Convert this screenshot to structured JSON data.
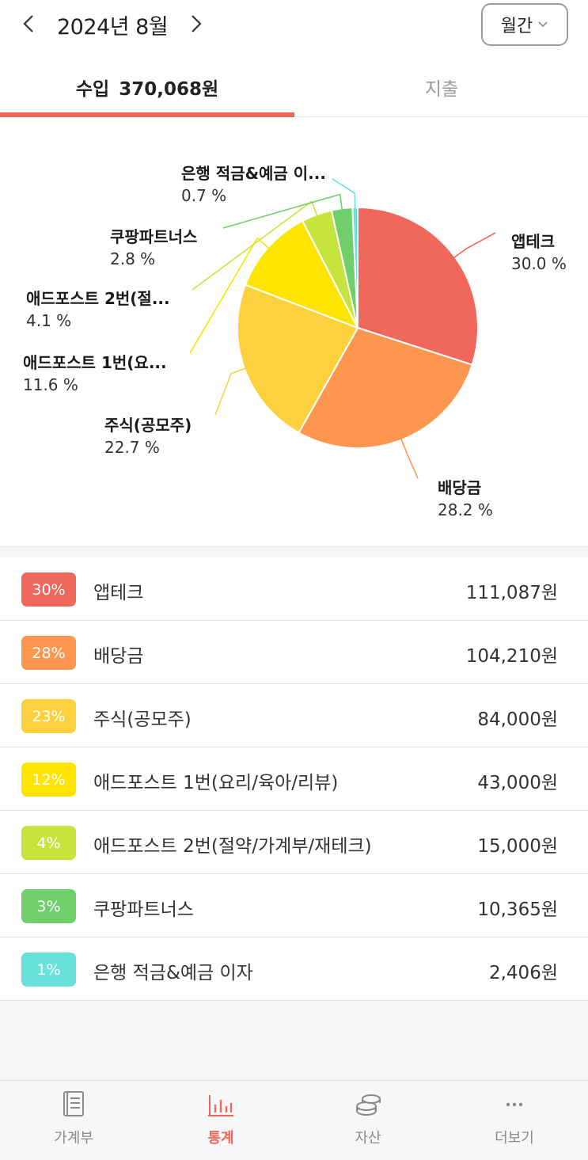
{
  "header": {
    "month": "2024년 8월",
    "period_select": "월간"
  },
  "tabs": [
    {
      "label": "수입",
      "amount": "370,068원",
      "active": true
    },
    {
      "label": "지출",
      "active": false
    }
  ],
  "chart_data": {
    "type": "pie",
    "slices": [
      {
        "label": "앱테크",
        "short_label": "앱테크",
        "percent": 30.0,
        "pct_text": "30.0 %",
        "color": "#f0675c"
      },
      {
        "label": "배당금",
        "short_label": "배당금",
        "percent": 28.2,
        "pct_text": "28.2 %",
        "color": "#fd964e"
      },
      {
        "label": "주식(공모주)",
        "short_label": "주식(공모주)",
        "percent": 22.7,
        "pct_text": "22.7 %",
        "color": "#fdd13e"
      },
      {
        "label": "애드포스트 1번(요리/육아/리뷰)",
        "short_label": "애드포스트 1번(요...",
        "percent": 11.6,
        "pct_text": "11.6 %",
        "color": "#fde500"
      },
      {
        "label": "애드포스트 2번(절약/가계부/재테크)",
        "short_label": "애드포스트 2번(절...",
        "percent": 4.1,
        "pct_text": "4.1 %",
        "color": "#c7e43e"
      },
      {
        "label": "쿠팡파트너스",
        "short_label": "쿠팡파트너스",
        "percent": 2.8,
        "pct_text": "2.8 %",
        "color": "#6fcf6a"
      },
      {
        "label": "은행 적금&예금 이자",
        "short_label": "은행 적금&예금 이...",
        "percent": 0.7,
        "pct_text": "0.7 %",
        "color": "#66e2da"
      }
    ]
  },
  "list": [
    {
      "badge": "30%",
      "name": "앱테크",
      "amount": "111,087원",
      "color": "#f0675c"
    },
    {
      "badge": "28%",
      "name": "배당금",
      "amount": "104,210원",
      "color": "#fd964e"
    },
    {
      "badge": "23%",
      "name": "주식(공모주)",
      "amount": "84,000원",
      "color": "#fdd13e"
    },
    {
      "badge": "12%",
      "name": "애드포스트 1번(요리/육아/리뷰)",
      "amount": "43,000원",
      "color": "#fde500"
    },
    {
      "badge": "4%",
      "name": "애드포스트 2번(절약/가계부/재테크)",
      "amount": "15,000원",
      "color": "#c7e43e"
    },
    {
      "badge": "3%",
      "name": "쿠팡파트너스",
      "amount": "10,365원",
      "color": "#6fcf6a"
    },
    {
      "badge": "1%",
      "name": "은행 적금&예금 이자",
      "amount": "2,406원",
      "color": "#66e2da"
    }
  ],
  "bottom_nav": [
    {
      "label": "가계부",
      "icon": "book-icon",
      "active": false
    },
    {
      "label": "통계",
      "icon": "bar-chart-icon",
      "active": true
    },
    {
      "label": "자산",
      "icon": "coins-icon",
      "active": false
    },
    {
      "label": "더보기",
      "icon": "more-icon",
      "active": false
    }
  ],
  "accent_color": "#f0675c"
}
